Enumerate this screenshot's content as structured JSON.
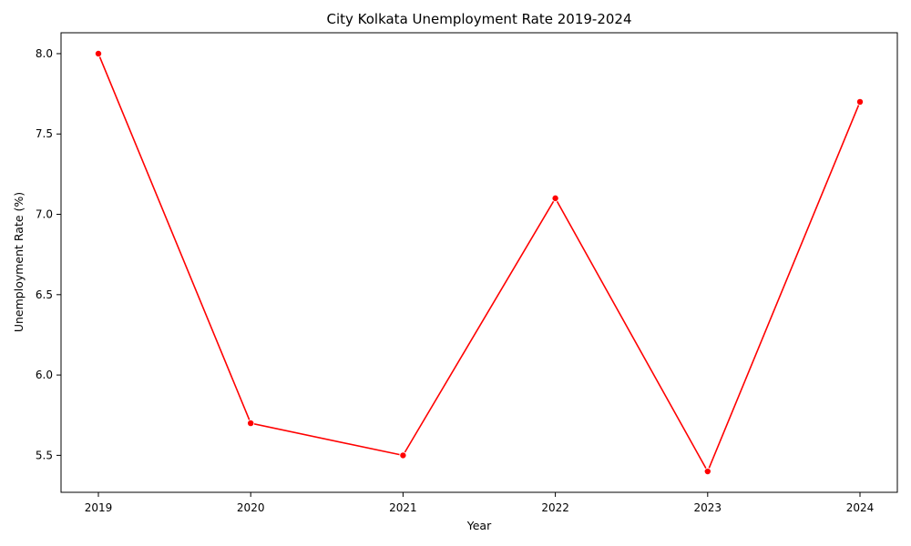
{
  "chart_data": {
    "type": "line",
    "title": "City Kolkata Unemployment Rate 2019-2024",
    "xlabel": "Year",
    "ylabel": "Unemployment Rate (%)",
    "x": [
      "2019",
      "2020",
      "2021",
      "2022",
      "2023",
      "2024"
    ],
    "series": [
      {
        "values": [
          8.0,
          5.7,
          5.5,
          7.1,
          5.4,
          7.7
        ],
        "color": "#ff0000"
      }
    ],
    "yticks": [
      "5.5",
      "6.0",
      "6.5",
      "7.0",
      "7.5",
      "8.0"
    ],
    "ylim": [
      5.27,
      8.13
    ],
    "grid": false,
    "marker": "circle"
  }
}
